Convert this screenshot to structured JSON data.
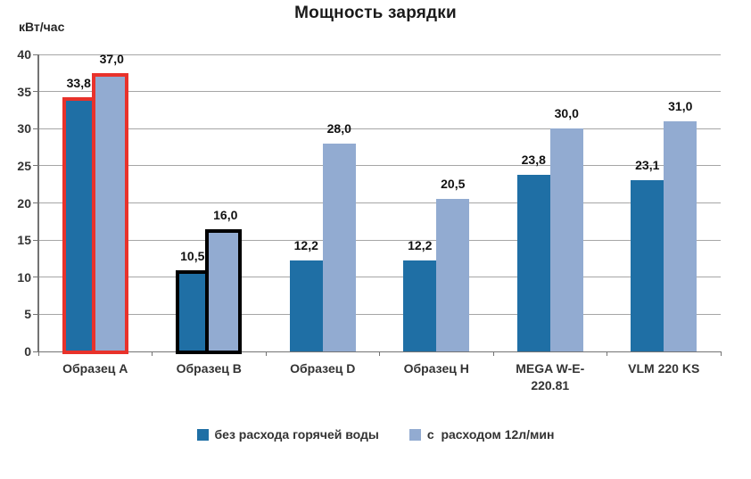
{
  "title": "Мощность зарядки",
  "y_axis_unit": "кВт/час",
  "chart_data": {
    "type": "bar",
    "title": "Мощность зарядки",
    "ylabel": "кВт/час",
    "xlabel": "",
    "categories": [
      "Образец A",
      "Образец B",
      "Образец D",
      "Образец H",
      "MEGA W-E-\n220.81",
      "VLM 220 KS"
    ],
    "series": [
      {
        "name": "без расхода горячей воды",
        "color": "#1f6fa5",
        "values": [
          33.8,
          10.5,
          12.2,
          12.2,
          23.8,
          23.1
        ]
      },
      {
        "name": "с  расходом 12л/мин",
        "color": "#92abd1",
        "values": [
          37.0,
          16.0,
          28.0,
          20.5,
          30.0,
          31.0
        ]
      }
    ],
    "data_labels": [
      [
        "33,8",
        "10,5",
        "12,2",
        "12,2",
        "23,8",
        "23,1"
      ],
      [
        "37,0",
        "16,0",
        "28,0",
        "20,5",
        "30,0",
        "31,0"
      ]
    ],
    "ylim": [
      0,
      40
    ],
    "ytick_step": 5,
    "ytick_labels": [
      "0",
      "5",
      "10",
      "15",
      "20",
      "25",
      "30",
      "35",
      "40"
    ],
    "grid": true,
    "legend_position": "bottom",
    "highlights": [
      {
        "category_index": 0,
        "outline_color": "#e8322b"
      },
      {
        "category_index": 1,
        "outline_color": "#000000"
      }
    ]
  },
  "colors": {
    "series1_fill": "#1f6fa5",
    "series2_fill": "#92abd1",
    "highlight_red": "#e8322b",
    "highlight_black": "#000000",
    "gridline": "#a6a6a6",
    "axis": "#737373",
    "text": "#333333",
    "background": "#ffffff"
  }
}
